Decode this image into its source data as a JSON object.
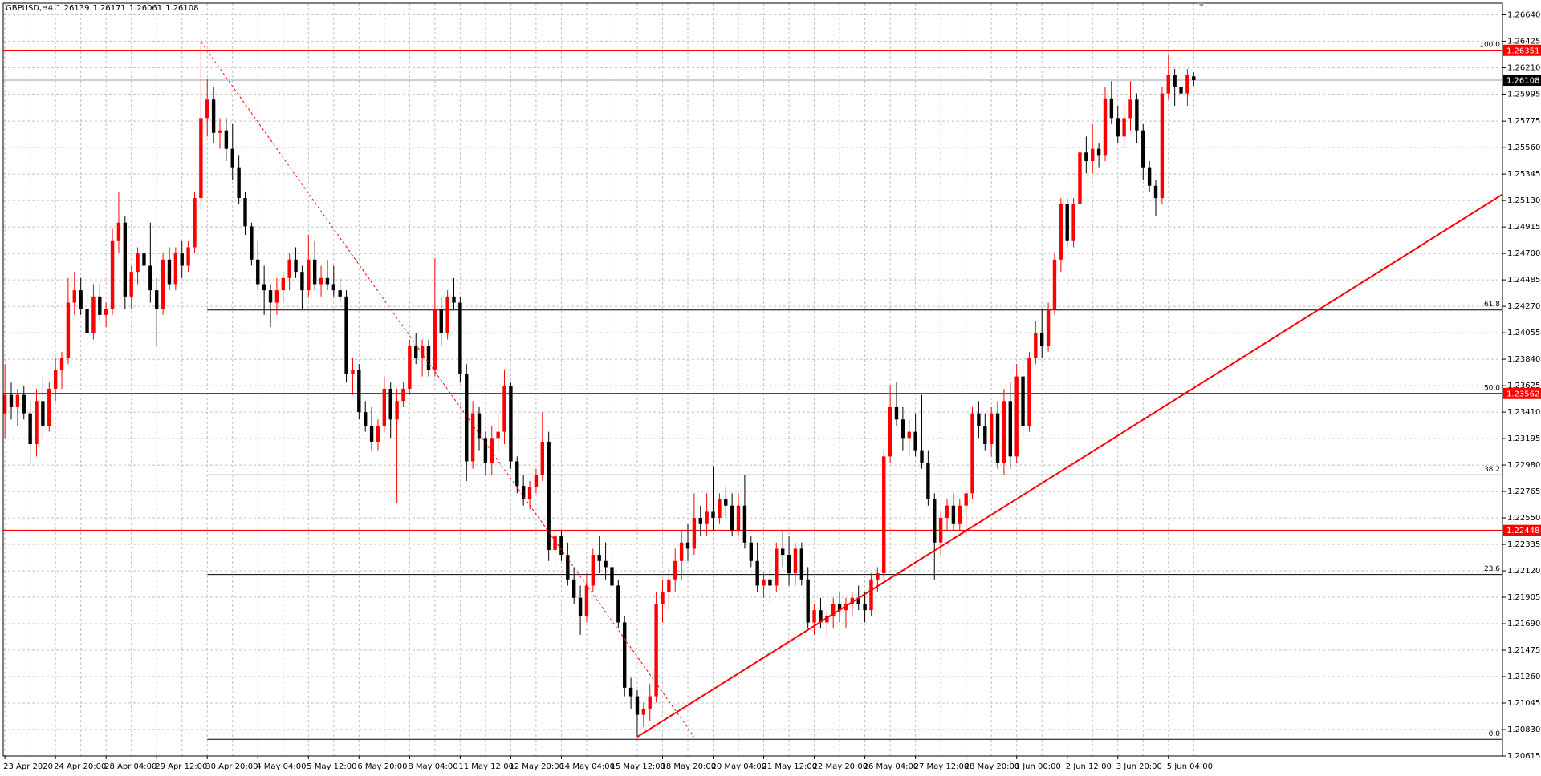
{
  "chart_data": {
    "type": "candlestick",
    "title": "GBPUSD,H4",
    "header_values": [
      1.26139,
      1.26171,
      1.26061,
      1.26108
    ],
    "up_color": "#ff0000",
    "down_color": "#000000",
    "grid": true,
    "ylim": [
      1.20615,
      1.2676
    ],
    "yticks": [
      {
        "value": 1.2664,
        "label": "1.26640"
      },
      1.26425,
      {
        "value": 1.2621,
        "label": "1.26210"
      },
      1.25995,
      1.25775,
      {
        "value": 1.2556,
        "label": "1.25560"
      },
      1.25345,
      {
        "value": 1.2513,
        "label": "1.25130"
      },
      1.24915,
      {
        "value": 1.247,
        "label": "1.24700"
      },
      1.24485,
      {
        "value": 1.2427,
        "label": "1.24270"
      },
      1.24055,
      {
        "value": 1.2384,
        "label": "1.23840"
      },
      1.23625,
      {
        "value": 1.2341,
        "label": "1.23410"
      },
      1.23195,
      {
        "value": 1.2298,
        "label": "1.22980"
      },
      1.22765,
      {
        "value": 1.2255,
        "label": "1.22550"
      },
      1.22335,
      {
        "value": 1.2212,
        "label": "1.22120"
      },
      1.21905,
      {
        "value": 1.2169,
        "label": "1.21690"
      },
      1.21475,
      {
        "value": 1.2126,
        "label": "1.21260"
      },
      1.21045,
      {
        "value": 1.2083,
        "label": "1.20830"
      },
      1.20615
    ],
    "categories": [
      "23 Apr 2020",
      null,
      null,
      null,
      null,
      null,
      null,
      null,
      "24 Apr 20:00",
      null,
      null,
      null,
      null,
      null,
      null,
      null,
      "28 Apr 04:00",
      null,
      null,
      null,
      null,
      null,
      null,
      null,
      "29 Apr 12:00",
      null,
      null,
      null,
      null,
      null,
      null,
      null,
      "30 Apr 20:00",
      null,
      null,
      null,
      null,
      null,
      null,
      null,
      "4 May 04:00",
      null,
      null,
      null,
      null,
      null,
      null,
      null,
      "5 May 12:00",
      null,
      null,
      null,
      null,
      null,
      null,
      null,
      "6 May 20:00",
      null,
      null,
      null,
      null,
      null,
      null,
      null,
      "8 May 04:00",
      null,
      null,
      null,
      null,
      null,
      null,
      null,
      "11 May 12:00",
      null,
      null,
      null,
      null,
      null,
      null,
      null,
      "12 May 20:00",
      null,
      null,
      null,
      null,
      null,
      null,
      null,
      "14 May 04:00",
      null,
      null,
      null,
      null,
      null,
      null,
      null,
      "15 May 12:00",
      null,
      null,
      null,
      null,
      null,
      null,
      null,
      "18 May 20:00",
      null,
      null,
      null,
      null,
      null,
      null,
      null,
      "20 May 04:00",
      null,
      null,
      null,
      null,
      null,
      null,
      null,
      "21 May 12:00",
      null,
      null,
      null,
      null,
      null,
      null,
      null,
      "22 May 20:00",
      null,
      null,
      null,
      null,
      null,
      null,
      null,
      "26 May 04:00",
      null,
      null,
      null,
      null,
      null,
      null,
      null,
      "27 May 12:00",
      null,
      null,
      null,
      null,
      null,
      null,
      null,
      "28 May 20:00",
      null,
      null,
      null,
      null,
      null,
      null,
      null,
      "1 Jun 00:00",
      null,
      null,
      null,
      null,
      null,
      null,
      null,
      "2 Jun 12:00",
      null,
      null,
      null,
      null,
      null,
      null,
      null,
      "3 Jun 20:00",
      null,
      null,
      null,
      null,
      null,
      null,
      null,
      "5 Jun 04:00",
      null,
      null,
      null,
      null
    ],
    "candles": [
      [
        1.234,
        1.238,
        1.232,
        1.2355
      ],
      [
        1.2355,
        1.2365,
        1.2335,
        1.2345
      ],
      [
        1.2345,
        1.236,
        1.233,
        1.2355
      ],
      [
        1.2355,
        1.2362,
        1.2335,
        1.234
      ],
      [
        1.234,
        1.235,
        1.23,
        1.2315
      ],
      [
        1.2315,
        1.236,
        1.2305,
        1.235
      ],
      [
        1.235,
        1.237,
        1.232,
        1.233
      ],
      [
        1.233,
        1.2365,
        1.2325,
        1.236
      ],
      [
        1.236,
        1.2385,
        1.235,
        1.2375
      ],
      [
        1.2375,
        1.239,
        1.236,
        1.2385
      ],
      [
        1.2385,
        1.245,
        1.238,
        1.243
      ],
      [
        1.243,
        1.2455,
        1.242,
        1.244
      ],
      [
        1.244,
        1.245,
        1.242,
        1.2425
      ],
      [
        1.2425,
        1.244,
        1.24,
        1.2405
      ],
      [
        1.2405,
        1.2445,
        1.24,
        1.2435
      ],
      [
        1.2435,
        1.2445,
        1.2415,
        1.242
      ],
      [
        1.242,
        1.243,
        1.241,
        1.2425
      ],
      [
        1.2425,
        1.249,
        1.242,
        1.248
      ],
      [
        1.248,
        1.252,
        1.247,
        1.2495
      ],
      [
        1.2495,
        1.25,
        1.2425,
        1.2435
      ],
      [
        1.2435,
        1.246,
        1.2425,
        1.2455
      ],
      [
        1.2455,
        1.2475,
        1.2445,
        1.247
      ],
      [
        1.247,
        1.248,
        1.245,
        1.246
      ],
      [
        1.246,
        1.2495,
        1.243,
        1.244
      ],
      [
        1.244,
        1.245,
        1.2395,
        1.2425
      ],
      [
        1.2425,
        1.247,
        1.242,
        1.2465
      ],
      [
        1.2465,
        1.2475,
        1.244,
        1.2445
      ],
      [
        1.2445,
        1.2475,
        1.244,
        1.247
      ],
      [
        1.247,
        1.248,
        1.245,
        1.246
      ],
      [
        1.246,
        1.248,
        1.2455,
        1.2475
      ],
      [
        1.2475,
        1.252,
        1.247,
        1.2515
      ],
      [
        1.2515,
        1.2642,
        1.2505,
        1.258
      ],
      [
        1.258,
        1.2612,
        1.2565,
        1.2595
      ],
      [
        1.2595,
        1.2605,
        1.256,
        1.2568
      ],
      [
        1.2568,
        1.258,
        1.2555,
        1.257
      ],
      [
        1.257,
        1.258,
        1.2545,
        1.2555
      ],
      [
        1.2555,
        1.2575,
        1.253,
        1.254
      ],
      [
        1.254,
        1.255,
        1.251,
        1.2515
      ],
      [
        1.2515,
        1.252,
        1.2485,
        1.2492
      ],
      [
        1.2492,
        1.2495,
        1.246,
        1.2465
      ],
      [
        1.2465,
        1.248,
        1.244,
        1.2445
      ],
      [
        1.2445,
        1.246,
        1.242,
        1.244
      ],
      [
        1.244,
        1.2445,
        1.241,
        1.243
      ],
      [
        1.243,
        1.245,
        1.242,
        1.244
      ],
      [
        1.244,
        1.2455,
        1.243,
        1.245
      ],
      [
        1.245,
        1.247,
        1.244,
        1.2465
      ],
      [
        1.2465,
        1.2475,
        1.245,
        1.2455
      ],
      [
        1.2455,
        1.246,
        1.2425,
        1.244
      ],
      [
        1.244,
        1.2485,
        1.2435,
        1.2465
      ],
      [
        1.2465,
        1.248,
        1.244,
        1.2445
      ],
      [
        1.2445,
        1.246,
        1.2435,
        1.245
      ],
      [
        1.245,
        1.2465,
        1.244,
        1.2445
      ],
      [
        1.2445,
        1.246,
        1.2435,
        1.244
      ],
      [
        1.244,
        1.245,
        1.243,
        1.2435
      ],
      [
        1.2435,
        1.244,
        1.2365,
        1.2372
      ],
      [
        1.2372,
        1.2385,
        1.2355,
        1.2375
      ],
      [
        1.2375,
        1.238,
        1.2335,
        1.2341
      ],
      [
        1.2341,
        1.235,
        1.2325,
        1.233
      ],
      [
        1.233,
        1.2345,
        1.231,
        1.2317
      ],
      [
        1.2317,
        1.2335,
        1.231,
        1.233
      ],
      [
        1.233,
        1.237,
        1.2325,
        1.236
      ],
      [
        1.236,
        1.2365,
        1.232,
        1.2335
      ],
      [
        1.2335,
        1.236,
        1.2267,
        1.235
      ],
      [
        1.235,
        1.2365,
        1.2345,
        1.236
      ],
      [
        1.236,
        1.24,
        1.2355,
        1.2395
      ],
      [
        1.2395,
        1.2405,
        1.238,
        1.2385
      ],
      [
        1.2385,
        1.24,
        1.237,
        1.2395
      ],
      [
        1.2395,
        1.24,
        1.237,
        1.2375
      ],
      [
        1.2375,
        1.2466,
        1.237,
        1.2425
      ],
      [
        1.2425,
        1.2435,
        1.2395,
        1.2405
      ],
      [
        1.2405,
        1.244,
        1.24,
        1.2435
      ],
      [
        1.2435,
        1.245,
        1.2425,
        1.243
      ],
      [
        1.243,
        1.2435,
        1.2365,
        1.2372
      ],
      [
        1.2372,
        1.238,
        1.2285,
        1.2301
      ],
      [
        1.2301,
        1.235,
        1.2295,
        1.234
      ],
      [
        1.234,
        1.2345,
        1.231,
        1.232
      ],
      [
        1.232,
        1.2325,
        1.229,
        1.23
      ],
      [
        1.23,
        1.233,
        1.229,
        1.232
      ],
      [
        1.232,
        1.234,
        1.231,
        1.2325
      ],
      [
        1.2325,
        1.2375,
        1.2315,
        1.2362
      ],
      [
        1.2362,
        1.2365,
        1.2295,
        1.2301
      ],
      [
        1.2301,
        1.2305,
        1.2275,
        1.2281
      ],
      [
        1.2281,
        1.229,
        1.2265,
        1.227
      ],
      [
        1.227,
        1.2285,
        1.2262,
        1.228
      ],
      [
        1.228,
        1.2295,
        1.2275,
        1.229
      ],
      [
        1.229,
        1.2341,
        1.2285,
        1.2317
      ],
      [
        1.2317,
        1.2325,
        1.222,
        1.2229
      ],
      [
        1.2229,
        1.2245,
        1.2215,
        1.224
      ],
      [
        1.224,
        1.2245,
        1.222,
        1.2225
      ],
      [
        1.2225,
        1.2235,
        1.22,
        1.2205
      ],
      [
        1.2205,
        1.2215,
        1.2185,
        1.219
      ],
      [
        1.219,
        1.22,
        1.216,
        1.2175
      ],
      [
        1.2175,
        1.221,
        1.217,
        1.22
      ],
      [
        1.22,
        1.223,
        1.2195,
        1.2225
      ],
      [
        1.2225,
        1.224,
        1.221,
        1.222
      ],
      [
        1.222,
        1.2235,
        1.2205,
        1.2215
      ],
      [
        1.2215,
        1.2225,
        1.219,
        1.22
      ],
      [
        1.22,
        1.2205,
        1.2165,
        1.217
      ],
      [
        1.217,
        1.2175,
        1.211,
        1.2117
      ],
      [
        1.2117,
        1.2125,
        1.21,
        1.211
      ],
      [
        1.211,
        1.2115,
        1.2077,
        1.2095
      ],
      [
        1.2095,
        1.2105,
        1.2085,
        1.21
      ],
      [
        1.21,
        1.212,
        1.209,
        1.211
      ],
      [
        1.211,
        1.2195,
        1.2105,
        1.2185
      ],
      [
        1.2185,
        1.2205,
        1.217,
        1.2195
      ],
      [
        1.2195,
        1.2215,
        1.218,
        1.2205
      ],
      [
        1.2205,
        1.223,
        1.2195,
        1.222
      ],
      [
        1.222,
        1.2245,
        1.2205,
        1.2235
      ],
      [
        1.2235,
        1.225,
        1.222,
        1.223
      ],
      [
        1.223,
        1.2275,
        1.2225,
        1.2255
      ],
      [
        1.2255,
        1.2265,
        1.224,
        1.225
      ],
      [
        1.225,
        1.2275,
        1.224,
        1.226
      ],
      [
        1.226,
        1.2297,
        1.2245,
        1.2255
      ],
      [
        1.2255,
        1.2275,
        1.225,
        1.227
      ],
      [
        1.227,
        1.228,
        1.2255,
        1.2265
      ],
      [
        1.2265,
        1.2275,
        1.224,
        1.2245
      ],
      [
        1.2245,
        1.2275,
        1.224,
        1.2265
      ],
      [
        1.2265,
        1.229,
        1.223,
        1.2235
      ],
      [
        1.2235,
        1.224,
        1.2215,
        1.222
      ],
      [
        1.222,
        1.2235,
        1.2195,
        1.22
      ],
      [
        1.22,
        1.221,
        1.219,
        1.2205
      ],
      [
        1.2205,
        1.222,
        1.2185,
        1.22
      ],
      [
        1.22,
        1.2235,
        1.2195,
        1.223
      ],
      [
        1.223,
        1.2245,
        1.2215,
        1.2225
      ],
      [
        1.2225,
        1.224,
        1.22,
        1.221
      ],
      [
        1.221,
        1.2235,
        1.22,
        1.223
      ],
      [
        1.223,
        1.2235,
        1.22,
        1.2205
      ],
      [
        1.2205,
        1.2215,
        1.2165,
        1.217
      ],
      [
        1.217,
        1.2185,
        1.216,
        1.218
      ],
      [
        1.218,
        1.219,
        1.2165,
        1.217
      ],
      [
        1.217,
        1.218,
        1.216,
        1.2175
      ],
      [
        1.2175,
        1.219,
        1.2165,
        1.2185
      ],
      [
        1.2185,
        1.2195,
        1.217,
        1.218
      ],
      [
        1.218,
        1.219,
        1.2165,
        1.2185
      ],
      [
        1.2185,
        1.2195,
        1.2175,
        1.219
      ],
      [
        1.219,
        1.22,
        1.218,
        1.2185
      ],
      [
        1.2185,
        1.2195,
        1.217,
        1.218
      ],
      [
        1.218,
        1.221,
        1.2175,
        1.2205
      ],
      [
        1.2205,
        1.2215,
        1.2195,
        1.221
      ],
      [
        1.221,
        1.231,
        1.2205,
        1.2305
      ],
      [
        1.2305,
        1.2363,
        1.23,
        1.2345
      ],
      [
        1.2345,
        1.2365,
        1.233,
        1.2335
      ],
      [
        1.2335,
        1.2345,
        1.231,
        1.232
      ],
      [
        1.232,
        1.2335,
        1.2305,
        1.2325
      ],
      [
        1.2325,
        1.234,
        1.2305,
        1.231
      ],
      [
        1.231,
        1.2355,
        1.2295,
        1.23
      ],
      [
        1.23,
        1.231,
        1.2265,
        1.227
      ],
      [
        1.227,
        1.2275,
        1.2205,
        1.2235
      ],
      [
        1.2235,
        1.226,
        1.2225,
        1.2255
      ],
      [
        1.2255,
        1.227,
        1.2245,
        1.2265
      ],
      [
        1.2265,
        1.2275,
        1.2245,
        1.225
      ],
      [
        1.225,
        1.227,
        1.2245,
        1.2265
      ],
      [
        1.2265,
        1.228,
        1.224,
        1.2275
      ],
      [
        1.2275,
        1.2345,
        1.227,
        1.234
      ],
      [
        1.234,
        1.235,
        1.232,
        1.233
      ],
      [
        1.233,
        1.234,
        1.231,
        1.2315
      ],
      [
        1.2315,
        1.2345,
        1.2305,
        1.234
      ],
      [
        1.234,
        1.235,
        1.2295,
        1.23
      ],
      [
        1.23,
        1.236,
        1.229,
        1.235
      ],
      [
        1.235,
        1.2365,
        1.2295,
        1.2305
      ],
      [
        1.2305,
        1.238,
        1.23,
        1.237
      ],
      [
        1.237,
        1.2385,
        1.232,
        1.233
      ],
      [
        1.233,
        1.239,
        1.2325,
        1.2385
      ],
      [
        1.2385,
        1.2415,
        1.238,
        1.2405
      ],
      [
        1.2405,
        1.2425,
        1.2385,
        1.2395
      ],
      [
        1.2395,
        1.243,
        1.239,
        1.2425
      ],
      [
        1.2425,
        1.247,
        1.242,
        1.2465
      ],
      [
        1.2465,
        1.2515,
        1.2455,
        1.251
      ],
      [
        1.251,
        1.2515,
        1.2475,
        1.248
      ],
      [
        1.248,
        1.2515,
        1.2475,
        1.251
      ],
      [
        1.251,
        1.256,
        1.25,
        1.2552
      ],
      [
        1.2552,
        1.2565,
        1.2535,
        1.2545
      ],
      [
        1.2545,
        1.2575,
        1.2535,
        1.2555
      ],
      [
        1.2555,
        1.256,
        1.254,
        1.255
      ],
      [
        1.255,
        1.2605,
        1.2545,
        1.2596
      ],
      [
        1.2596,
        1.261,
        1.2575,
        1.258
      ],
      [
        1.258,
        1.259,
        1.256,
        1.2565
      ],
      [
        1.2565,
        1.259,
        1.2555,
        1.258
      ],
      [
        1.258,
        1.261,
        1.257,
        1.2595
      ],
      [
        1.2595,
        1.26,
        1.256,
        1.257
      ],
      [
        1.257,
        1.2575,
        1.253,
        1.254
      ],
      [
        1.254,
        1.2545,
        1.252,
        1.2525
      ],
      [
        1.2525,
        1.253,
        1.25,
        1.2515
      ],
      [
        1.2515,
        1.2605,
        1.251,
        1.26
      ],
      [
        1.26,
        1.2632,
        1.2595,
        1.2615
      ],
      [
        1.2615,
        1.262,
        1.259,
        1.2605
      ],
      [
        1.2605,
        1.261,
        1.2585,
        1.26
      ],
      [
        1.26,
        1.262,
        1.259,
        1.2615
      ],
      [
        1.26139,
        1.26171,
        1.26061,
        1.26108
      ]
    ],
    "levels": [
      {
        "price": 1.26351,
        "color": "#ff0000"
      },
      {
        "price": 1.23562,
        "color": "#ff0000"
      },
      {
        "price": 1.22448,
        "color": "#ff0000"
      }
    ],
    "price_line": 1.26108,
    "fib": {
      "start_index": 32,
      "color": "#000000",
      "levels": [
        {
          "label": "100.0",
          "price": 1.26351
        },
        {
          "label": "61.8",
          "price": 1.2424
        },
        {
          "label": "50.0",
          "price": 1.2356
        },
        {
          "label": "38.2",
          "price": 1.229
        },
        {
          "label": "23.6",
          "price": 1.2209
        },
        {
          "label": "0.0",
          "price": 1.2075
        }
      ]
    },
    "fib_line": {
      "from_index": 31,
      "from": 1.2642,
      "to_index": 109,
      "to": 1.2077
    },
    "trendline": {
      "start_index": 100,
      "start": 1.2077,
      "end": 1.2518
    }
  }
}
